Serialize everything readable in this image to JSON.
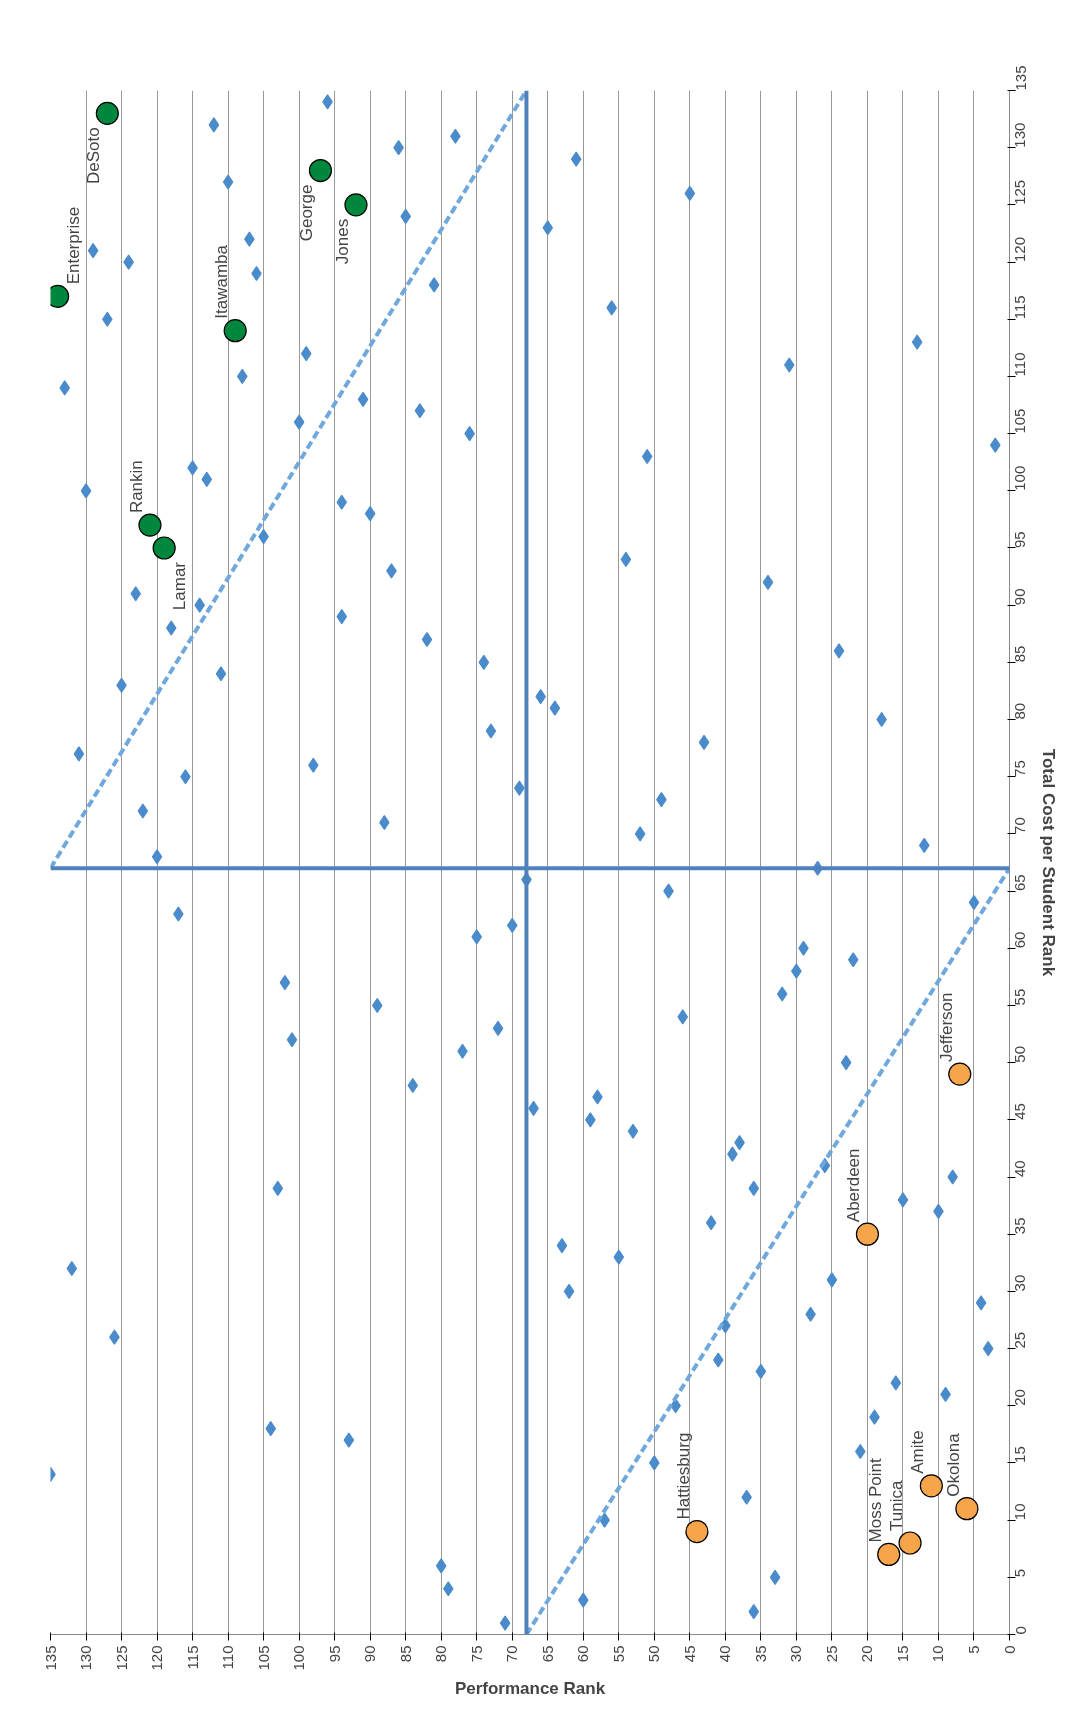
{
  "chart_data": {
    "type": "scatter",
    "xlabel": "Performance Rank",
    "ylabel": "Total Cost per Student Rank",
    "xlim": [
      135,
      0
    ],
    "ylim": [
      0,
      135
    ],
    "xticks": [
      0,
      5,
      10,
      15,
      20,
      25,
      30,
      35,
      40,
      45,
      50,
      55,
      60,
      65,
      70,
      75,
      80,
      85,
      90,
      95,
      100,
      105,
      110,
      115,
      120,
      125,
      130,
      135
    ],
    "yticks": [
      0,
      5,
      10,
      15,
      20,
      25,
      30,
      35,
      40,
      45,
      50,
      55,
      60,
      65,
      70,
      75,
      80,
      85,
      90,
      95,
      100,
      105,
      110,
      115,
      120,
      125,
      130,
      135
    ],
    "grid": "x",
    "ref_lines": [
      {
        "axis": "y",
        "value": 67,
        "label": null,
        "color": "#4f81bd"
      },
      {
        "axis": "x",
        "value": 68,
        "label": null,
        "color": "#4f81bd"
      }
    ],
    "series": [
      {
        "marker": "diamond",
        "color": "#4a8bcb",
        "values": [
          14,
          32,
          26,
          18,
          17,
          6,
          4,
          1,
          3,
          10,
          15,
          20,
          24,
          27,
          12,
          39,
          23,
          5,
          2,
          36,
          42,
          43,
          34,
          30,
          45,
          47,
          46,
          33,
          44,
          54,
          53,
          51,
          61,
          62,
          66,
          74,
          79,
          85,
          82,
          81,
          87,
          93,
          98,
          99,
          89,
          96,
          84,
          90,
          88,
          91,
          83,
          72,
          68,
          75,
          77,
          76,
          71,
          63,
          57,
          52,
          55,
          48,
          39,
          102,
          101,
          100,
          109,
          110,
          106,
          112,
          105,
          107,
          108,
          115,
          120,
          121,
          122,
          119,
          127,
          132,
          134,
          130,
          131,
          124,
          118,
          129,
          123,
          126,
          116,
          111,
          113,
          104,
          103,
          94,
          92,
          86,
          80,
          78,
          73,
          70,
          69,
          67,
          65,
          64,
          60,
          58,
          59,
          56,
          50,
          41,
          40,
          38,
          37,
          31,
          28,
          29,
          25,
          22,
          21,
          19,
          16
        ],
        "x": [
          135,
          132,
          126,
          104,
          93,
          80,
          79,
          71,
          60,
          57,
          50,
          47,
          41,
          40,
          37,
          36,
          35,
          33,
          36,
          42,
          39,
          38,
          63,
          62,
          59,
          58,
          67,
          55,
          53,
          46,
          72,
          77,
          75,
          70,
          68,
          69,
          73,
          74,
          66,
          64,
          82,
          87,
          90,
          94,
          94,
          105,
          111,
          114,
          118,
          123,
          125,
          122,
          120,
          116,
          131,
          98,
          88,
          117,
          102,
          101,
          89,
          84,
          103,
          115,
          113,
          130,
          133,
          108,
          100,
          99,
          76,
          83,
          91,
          127,
          124,
          129,
          107,
          106,
          110,
          112,
          96,
          86,
          78,
          85,
          81,
          61,
          65,
          45,
          56,
          31,
          13,
          2,
          51,
          54,
          34,
          24,
          18,
          43,
          49,
          52,
          12,
          27,
          48,
          5,
          29,
          30,
          22,
          32,
          23,
          26,
          8,
          15,
          10,
          25,
          28,
          4,
          3,
          16,
          9,
          19,
          21
        ]
      },
      {
        "marker": "circle",
        "color": "#00873e",
        "values": [
          133,
          117,
          128,
          125,
          114,
          97,
          95
        ],
        "x": [
          127,
          134,
          97,
          92,
          109,
          121,
          119
        ]
      },
      {
        "marker": "circle",
        "color": "#f7a54a",
        "values": [
          9,
          7,
          8,
          13,
          11,
          35,
          49
        ],
        "x": [
          44,
          17,
          14,
          11,
          6,
          20,
          7
        ]
      },
      {
        "type": "line",
        "line_style": "dashed",
        "color": "#6fa8dc",
        "values": [
          0,
          67
        ],
        "x": [
          68,
          0
        ]
      },
      {
        "type": "line",
        "line_style": "dashed",
        "color": "#6fa8dc",
        "values": [
          67,
          135
        ],
        "x": [
          135,
          68
        ]
      }
    ],
    "annotations": [
      {
        "text": "DeSoto",
        "x": 127,
        "y": 133
      },
      {
        "text": "Enterprise",
        "x": 134,
        "y": 117
      },
      {
        "text": "George",
        "x": 97,
        "y": 128
      },
      {
        "text": "Jones",
        "x": 92,
        "y": 125
      },
      {
        "text": "Itawamba",
        "x": 109,
        "y": 114
      },
      {
        "text": "Rankin",
        "x": 121,
        "y": 97
      },
      {
        "text": "Lamar",
        "x": 119,
        "y": 95
      },
      {
        "text": "Hattiesburg",
        "x": 44,
        "y": 9
      },
      {
        "text": "Moss Point",
        "x": 17,
        "y": 7
      },
      {
        "text": "Tunica",
        "x": 14,
        "y": 8
      },
      {
        "text": "Amite",
        "x": 11,
        "y": 13
      },
      {
        "text": "Okolona",
        "x": 6,
        "y": 11
      },
      {
        "text": "Aberdeen",
        "x": 20,
        "y": 35
      },
      {
        "text": "Jefferson",
        "x": 7,
        "y": 49
      }
    ]
  }
}
